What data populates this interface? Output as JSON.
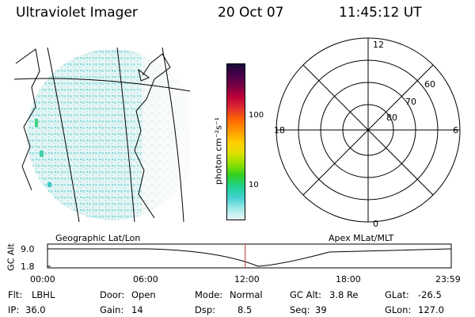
{
  "header": {
    "title": "Ultraviolet Imager",
    "date": "20 Oct 07",
    "time": "11:45:12 UT"
  },
  "colorbar": {
    "unit_label": "photon cm⁻²s⁻¹",
    "tick_high": "100",
    "tick_low": "10",
    "colors": [
      "#1a0a3a",
      "#4a004a",
      "#7a0040",
      "#c0003a",
      "#e03030",
      "#ff6600",
      "#ff9900",
      "#ffcc00",
      "#e0e000",
      "#90e000",
      "#30d020",
      "#20d090",
      "#40d0d0",
      "#a0e8e8",
      "#e8f8f8"
    ]
  },
  "polar": {
    "label_top": "12",
    "label_bottom": "0",
    "label_left": "18",
    "label_right": "6",
    "ring_labels": [
      "60",
      "70",
      "80"
    ]
  },
  "map": {
    "caption": "Geographic Lat/Lon"
  },
  "apex_caption": "Apex MLat/MLT",
  "timeline": {
    "axis_label": "GC Alt",
    "y_high": "9.0",
    "y_low": "1.8",
    "x_ticks": [
      "00:00",
      "06:00",
      "12:00",
      "18:00",
      "23:59"
    ],
    "marker_color": "#c03030"
  },
  "info": {
    "flt_label": "Flt:",
    "flt_value": "LBHL",
    "ip_label": "IP:",
    "ip_value": "36.0",
    "door_label": "Door:",
    "door_value": "Open",
    "gain_label": "Gain:",
    "gain_value": "14",
    "mode_label": "Mode:",
    "mode_value": "Normal",
    "dsp_label": "Dsp:",
    "dsp_value": "8.5",
    "gcalt_label": "GC Alt:",
    "gcalt_value": "3.8 Re",
    "seq_label": "Seq:",
    "seq_value": "39",
    "glat_label": "GLat:",
    "glat_value": "-26.5",
    "glon_label": "GLon:",
    "glon_value": "127.0"
  }
}
